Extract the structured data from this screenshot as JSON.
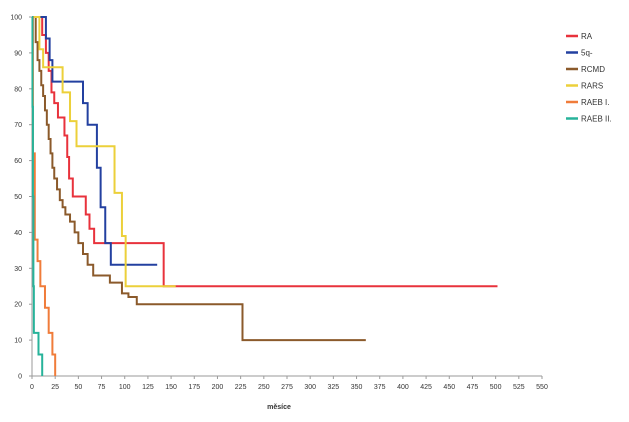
{
  "chart_data": {
    "type": "line",
    "title": "",
    "xlabel": "měsíce",
    "ylabel": "",
    "xlim": [
      0,
      550
    ],
    "ylim": [
      0,
      100
    ],
    "grid": false,
    "legend_position": "top-right",
    "x_ticks": [
      "0",
      "25",
      "50",
      "75",
      "100",
      "125",
      "150",
      "175",
      "200",
      "225",
      "250",
      "275",
      "300",
      "325",
      "350",
      "375",
      "400",
      "425",
      "450",
      "475",
      "500",
      "525",
      "550"
    ],
    "y_ticks": [
      "0",
      "10",
      "20",
      "30",
      "40",
      "50",
      "60",
      "70",
      "80",
      "90",
      "100"
    ],
    "series": [
      {
        "name": "RA",
        "color": "#e8323c",
        "points": [
          [
            0,
            100
          ],
          [
            11,
            100
          ],
          [
            11,
            95
          ],
          [
            15,
            95
          ],
          [
            15,
            90
          ],
          [
            18,
            90
          ],
          [
            18,
            85
          ],
          [
            21,
            85
          ],
          [
            21,
            79
          ],
          [
            24,
            79
          ],
          [
            24,
            76
          ],
          [
            28,
            76
          ],
          [
            28,
            72
          ],
          [
            35,
            72
          ],
          [
            35,
            67
          ],
          [
            38,
            67
          ],
          [
            38,
            61
          ],
          [
            40,
            61
          ],
          [
            40,
            55
          ],
          [
            44,
            55
          ],
          [
            44,
            50
          ],
          [
            58,
            50
          ],
          [
            58,
            45
          ],
          [
            62,
            45
          ],
          [
            62,
            41
          ],
          [
            67,
            41
          ],
          [
            67,
            37
          ],
          [
            142,
            37
          ],
          [
            142,
            25
          ],
          [
            502,
            25
          ]
        ]
      },
      {
        "name": "5q-",
        "color": "#2340a0",
        "points": [
          [
            0,
            100
          ],
          [
            15,
            100
          ],
          [
            15,
            94
          ],
          [
            19,
            94
          ],
          [
            19,
            88
          ],
          [
            22,
            88
          ],
          [
            22,
            82
          ],
          [
            55,
            82
          ],
          [
            55,
            76
          ],
          [
            60,
            76
          ],
          [
            60,
            70
          ],
          [
            70,
            70
          ],
          [
            70,
            58
          ],
          [
            74,
            58
          ],
          [
            74,
            47
          ],
          [
            79,
            47
          ],
          [
            79,
            37
          ],
          [
            85,
            37
          ],
          [
            85,
            31
          ],
          [
            135,
            31
          ]
        ]
      },
      {
        "name": "RCMD",
        "color": "#8b5a2b",
        "points": [
          [
            0,
            100
          ],
          [
            4,
            100
          ],
          [
            4,
            93
          ],
          [
            6,
            93
          ],
          [
            6,
            88
          ],
          [
            8,
            88
          ],
          [
            8,
            85
          ],
          [
            10,
            85
          ],
          [
            10,
            81
          ],
          [
            12,
            81
          ],
          [
            12,
            78
          ],
          [
            14,
            78
          ],
          [
            14,
            74
          ],
          [
            16,
            74
          ],
          [
            16,
            70
          ],
          [
            18,
            70
          ],
          [
            18,
            66
          ],
          [
            20,
            66
          ],
          [
            20,
            62
          ],
          [
            22,
            62
          ],
          [
            22,
            58
          ],
          [
            24,
            58
          ],
          [
            24,
            55
          ],
          [
            27,
            55
          ],
          [
            27,
            52
          ],
          [
            30,
            52
          ],
          [
            30,
            49
          ],
          [
            33,
            49
          ],
          [
            33,
            47
          ],
          [
            36,
            47
          ],
          [
            36,
            45
          ],
          [
            41,
            45
          ],
          [
            41,
            43
          ],
          [
            46,
            43
          ],
          [
            46,
            40
          ],
          [
            50,
            40
          ],
          [
            50,
            37
          ],
          [
            55,
            37
          ],
          [
            55,
            34
          ],
          [
            60,
            34
          ],
          [
            60,
            31
          ],
          [
            66,
            31
          ],
          [
            66,
            28
          ],
          [
            84,
            28
          ],
          [
            84,
            26
          ],
          [
            97,
            26
          ],
          [
            97,
            23
          ],
          [
            104,
            23
          ],
          [
            104,
            22
          ],
          [
            113,
            22
          ],
          [
            113,
            20
          ],
          [
            150,
            20
          ],
          [
            150,
            20
          ],
          [
            227,
            20
          ],
          [
            227,
            10
          ],
          [
            360,
            10
          ]
        ]
      },
      {
        "name": "RARS",
        "color": "#ecd03a",
        "points": [
          [
            0,
            100
          ],
          [
            8,
            100
          ],
          [
            8,
            91
          ],
          [
            12,
            91
          ],
          [
            12,
            86
          ],
          [
            33,
            86
          ],
          [
            33,
            79
          ],
          [
            41,
            79
          ],
          [
            41,
            71
          ],
          [
            48,
            71
          ],
          [
            48,
            64
          ],
          [
            89,
            64
          ],
          [
            89,
            51
          ],
          [
            97,
            51
          ],
          [
            97,
            39
          ],
          [
            101,
            39
          ],
          [
            101,
            25
          ],
          [
            155,
            25
          ]
        ]
      },
      {
        "name": "RAEB I.",
        "color": "#f07c3a",
        "points": [
          [
            0,
            100
          ],
          [
            1,
            100
          ],
          [
            1,
            62
          ],
          [
            3,
            62
          ],
          [
            3,
            38
          ],
          [
            6,
            38
          ],
          [
            6,
            32
          ],
          [
            9,
            32
          ],
          [
            9,
            25
          ],
          [
            14,
            25
          ],
          [
            14,
            19
          ],
          [
            18,
            19
          ],
          [
            18,
            12
          ],
          [
            22,
            12
          ],
          [
            22,
            6
          ],
          [
            25,
            6
          ],
          [
            25,
            0
          ]
        ]
      },
      {
        "name": "RAEB II.",
        "color": "#27b39a",
        "points": [
          [
            0,
            100
          ],
          [
            0.5,
            100
          ],
          [
            0.5,
            75
          ],
          [
            1,
            75
          ],
          [
            1,
            50
          ],
          [
            1.5,
            50
          ],
          [
            1.5,
            25
          ],
          [
            2,
            25
          ],
          [
            2,
            12
          ],
          [
            7,
            12
          ],
          [
            7,
            6
          ],
          [
            11,
            6
          ],
          [
            11,
            0
          ]
        ]
      }
    ]
  }
}
